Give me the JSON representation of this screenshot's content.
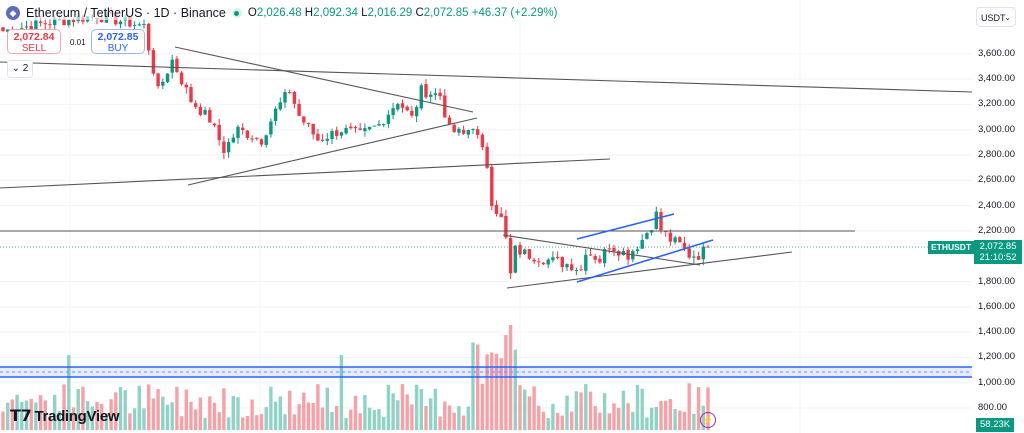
{
  "header": {
    "symbol_title": "Ethereum / TetherUS · 1D · Binance",
    "open_label": "O",
    "open": "2,026.48",
    "high_label": "H",
    "high": "2,092.34",
    "low_label": "L",
    "low": "2,016.29",
    "close_label": "C",
    "close": "2,072.85",
    "change": "+46.37 (+2.29%)"
  },
  "trade": {
    "sell_price": "2,072.84",
    "sell_label": "SELL",
    "buy_price": "2,072.85",
    "buy_label": "BUY",
    "spread": "0.01"
  },
  "indicators_toggle": {
    "icon": "chevron-down-icon",
    "count": "2"
  },
  "currency_select": {
    "value": "USDT"
  },
  "price_axis": [
    "3,600.00",
    "3,400.00",
    "3,200.00",
    "3,000.00",
    "2,800.00",
    "2,600.00",
    "2,400.00",
    "2,200.00",
    "1,800.00",
    "1,600.00",
    "1,400.00",
    "1,200.00",
    "1,000.00",
    "800.00"
  ],
  "last_price": {
    "symbol": "ETHUSDT",
    "price": "2,072.85",
    "countdown": "21:10:52"
  },
  "volume_label": "58.23K",
  "branding": {
    "logo": "TradingView"
  },
  "colors": {
    "up": "#089981",
    "down": "#f23645",
    "up_volume": "#8fd3c6",
    "down_volume": "#f7a1a6",
    "trendline": "#555555",
    "channel": "#2962ff"
  },
  "chart_data": {
    "type": "candlestick",
    "interval": "1D",
    "ylim": [
      700,
      4000
    ],
    "grid": true,
    "approx_close_keypoints": [
      [
        0,
        3780
      ],
      [
        10,
        3850
      ],
      [
        20,
        3900
      ],
      [
        30,
        3820
      ],
      [
        33,
        3300
      ],
      [
        36,
        3550
      ],
      [
        40,
        3230
      ],
      [
        44,
        3080
      ],
      [
        47,
        2840
      ],
      [
        50,
        3000
      ],
      [
        55,
        2920
      ],
      [
        58,
        3150
      ],
      [
        61,
        3310
      ],
      [
        63,
        3110
      ],
      [
        67,
        2920
      ],
      [
        72,
        3000
      ],
      [
        76,
        2960
      ],
      [
        80,
        3040
      ],
      [
        84,
        3230
      ],
      [
        87,
        3090
      ],
      [
        89,
        3310
      ],
      [
        93,
        3270
      ],
      [
        95,
        3000
      ],
      [
        98,
        2960
      ],
      [
        100,
        3040
      ],
      [
        103,
        2720
      ],
      [
        104,
        2440
      ],
      [
        106,
        2290
      ],
      [
        107,
        2130
      ],
      [
        108,
        1850
      ],
      [
        109,
        2050
      ],
      [
        112,
        2010
      ],
      [
        116,
        1970
      ],
      [
        121,
        1930
      ],
      [
        123,
        1890
      ],
      [
        124,
        2050
      ],
      [
        127,
        1970
      ],
      [
        129,
        2090
      ],
      [
        133,
        2010
      ],
      [
        136,
        2130
      ],
      [
        138,
        2250
      ],
      [
        139,
        2330
      ],
      [
        140,
        2210
      ],
      [
        142,
        2130
      ],
      [
        144,
        2090
      ],
      [
        146,
        2010
      ],
      [
        148,
        2010
      ],
      [
        150,
        2072.85
      ]
    ]
  }
}
